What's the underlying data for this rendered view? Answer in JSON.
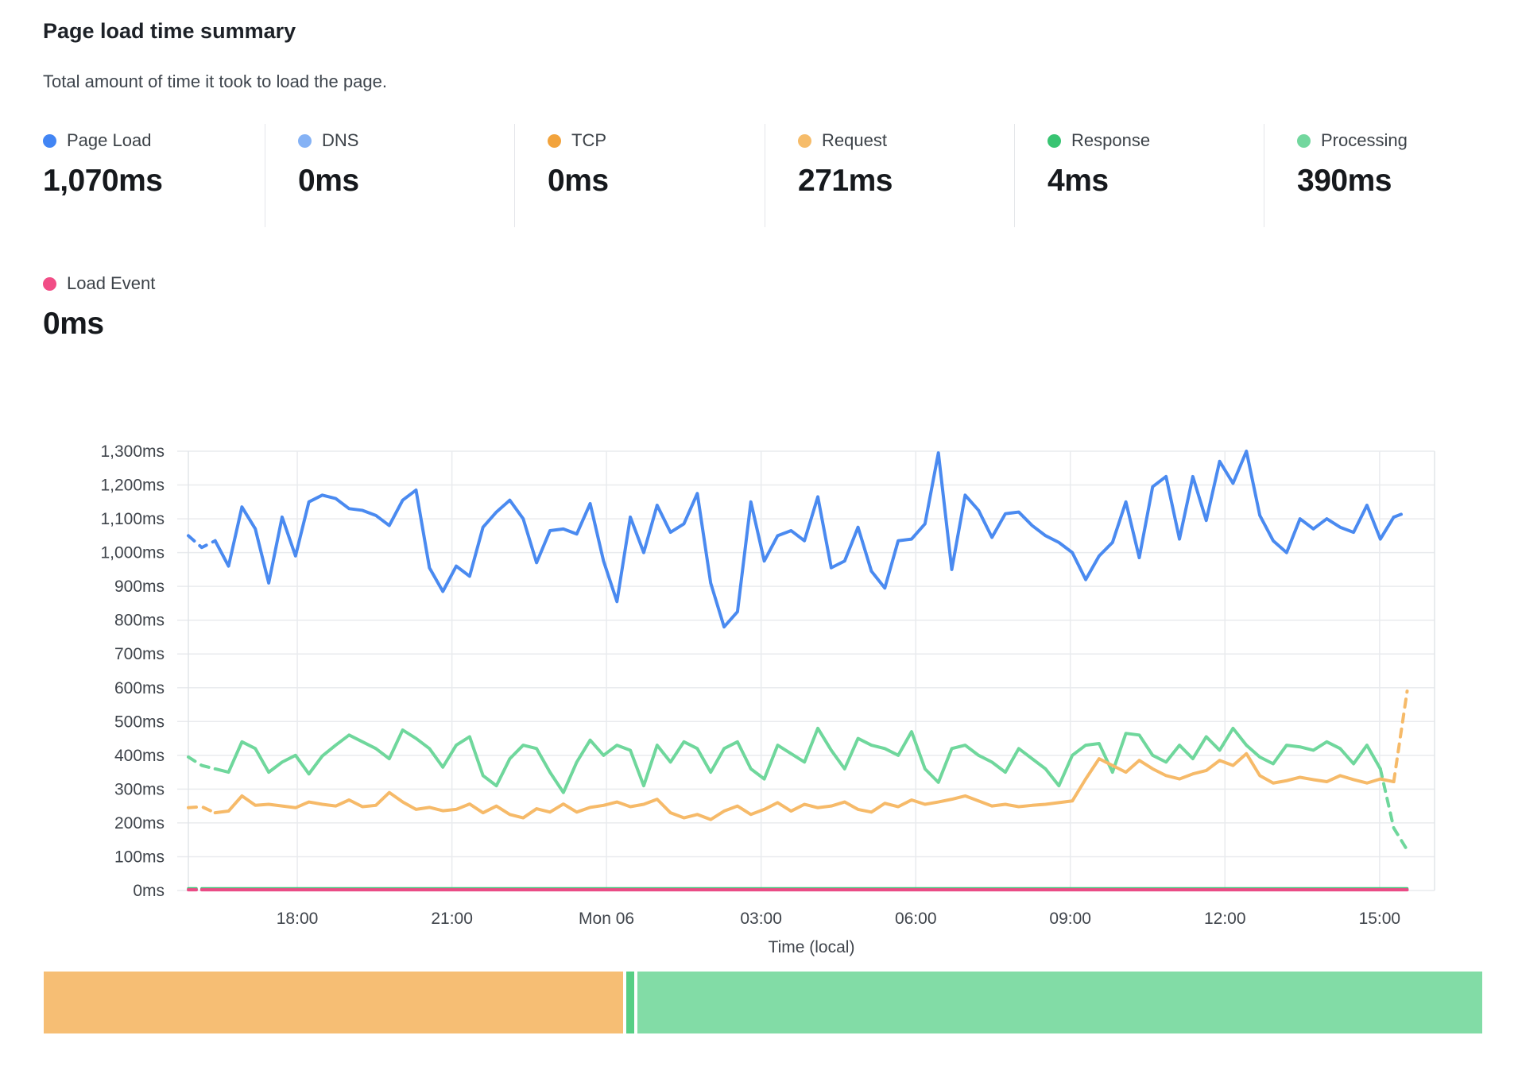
{
  "header": {
    "title": "Page load time summary",
    "subtitle": "Total amount of time it took to load the page."
  },
  "metrics": [
    {
      "label": "Page Load",
      "value": "1,070ms",
      "color": "#4285F4"
    },
    {
      "label": "DNS",
      "value": "0ms",
      "color": "#85B2F5"
    },
    {
      "label": "TCP",
      "value": "0ms",
      "color": "#F2A33C"
    },
    {
      "label": "Request",
      "value": "271ms",
      "color": "#F6BC6A"
    },
    {
      "label": "Response",
      "value": "4ms",
      "color": "#38C472"
    },
    {
      "label": "Processing",
      "value": "390ms",
      "color": "#72D79E"
    },
    {
      "label": "Load Event",
      "value": "0ms",
      "color": "#F14D86"
    }
  ],
  "chart_data": {
    "type": "line",
    "title": "Page load time summary",
    "xlabel": "Time (local)",
    "ylabel": "",
    "ylim": [
      0,
      1300
    ],
    "grid": true,
    "legend_position": "top",
    "y_ticks": [
      "0ms",
      "100ms",
      "200ms",
      "300ms",
      "400ms",
      "500ms",
      "600ms",
      "700ms",
      "800ms",
      "900ms",
      "1,000ms",
      "1,100ms",
      "1,200ms",
      "1,300ms"
    ],
    "x_ticks": [
      {
        "label": "18:00",
        "pos": 0.0874
      },
      {
        "label": "21:00",
        "pos": 0.2115
      },
      {
        "label": "Mon 06",
        "pos": 0.3355
      },
      {
        "label": "03:00",
        "pos": 0.4596
      },
      {
        "label": "06:00",
        "pos": 0.5837
      },
      {
        "label": "09:00",
        "pos": 0.7077
      },
      {
        "label": "12:00",
        "pos": 0.8318
      },
      {
        "label": "15:00",
        "pos": 0.9559
      }
    ],
    "series": [
      {
        "name": "Processing",
        "color": "#6FD79C",
        "width": 4,
        "dash_start": 2,
        "dash_end": 2,
        "values": [
          395,
          370,
          360,
          350,
          440,
          420,
          350,
          380,
          400,
          345,
          398,
          430,
          460,
          440,
          420,
          390,
          475,
          450,
          420,
          365,
          430,
          455,
          340,
          310,
          390,
          430,
          420,
          350,
          290,
          380,
          445,
          400,
          430,
          415,
          310,
          430,
          380,
          440,
          420,
          350,
          420,
          440,
          360,
          330,
          430,
          405,
          380,
          480,
          415,
          360,
          450,
          430,
          420,
          400,
          470,
          360,
          320,
          420,
          430,
          400,
          380,
          350,
          420,
          390,
          360,
          310,
          400,
          430,
          435,
          350,
          465,
          460,
          400,
          380,
          430,
          390,
          455,
          415,
          480,
          430,
          395,
          375,
          430,
          425,
          415,
          440,
          420,
          375,
          430,
          360,
          185,
          120
        ]
      },
      {
        "name": "Request",
        "color": "#F6BA69",
        "width": 4,
        "dash_start": 2,
        "dash_end": 1,
        "values": [
          245,
          248,
          230,
          235,
          280,
          252,
          255,
          250,
          245,
          262,
          255,
          250,
          268,
          248,
          252,
          290,
          262,
          240,
          246,
          236,
          240,
          256,
          230,
          250,
          225,
          215,
          242,
          232,
          256,
          232,
          246,
          252,
          262,
          248,
          255,
          270,
          230,
          215,
          225,
          210,
          235,
          250,
          225,
          240,
          260,
          235,
          255,
          245,
          250,
          262,
          240,
          232,
          258,
          248,
          268,
          255,
          262,
          270,
          280,
          265,
          250,
          255,
          248,
          252,
          255,
          260,
          265,
          330,
          390,
          370,
          350,
          385,
          360,
          340,
          330,
          345,
          355,
          385,
          370,
          405,
          340,
          318,
          325,
          335,
          328,
          322,
          340,
          328,
          318,
          330,
          322,
          590
        ]
      },
      {
        "name": "Response",
        "color": "#45C77C",
        "width": 3.5,
        "dash_start": 1,
        "dash_end": 0,
        "const": 6,
        "count": 92
      },
      {
        "name": "Load Event",
        "color": "#EA4C86",
        "width": 4,
        "dash_start": 1,
        "dash_end": 0,
        "const": 2,
        "count": 92
      },
      {
        "name": "Page Load",
        "color": "#4A8AF0",
        "width": 4,
        "dash_start": 2,
        "dash_end": 1,
        "values": [
          1050,
          1015,
          1035,
          960,
          1135,
          1070,
          910,
          1105,
          990,
          1150,
          1170,
          1160,
          1130,
          1125,
          1110,
          1080,
          1155,
          1185,
          955,
          885,
          960,
          930,
          1075,
          1120,
          1155,
          1100,
          970,
          1065,
          1070,
          1055,
          1145,
          975,
          855,
          1105,
          1000,
          1140,
          1060,
          1085,
          1175,
          910,
          780,
          825,
          1150,
          975,
          1050,
          1065,
          1035,
          1165,
          955,
          975,
          1075,
          945,
          895,
          1035,
          1040,
          1085,
          1295,
          950,
          1170,
          1125,
          1045,
          1115,
          1120,
          1080,
          1050,
          1030,
          1000,
          920,
          990,
          1030,
          1150,
          985,
          1195,
          1225,
          1040,
          1225,
          1095,
          1270,
          1205,
          1300,
          1110,
          1035,
          1000,
          1100,
          1070,
          1100,
          1075,
          1060,
          1140,
          1040,
          1105,
          1120
        ]
      }
    ]
  },
  "timeline_bar": {
    "segments": [
      {
        "name": "orange-segment",
        "color": "#F6BE74",
        "fraction": 0.4045
      },
      {
        "name": "green-sliver-segment",
        "color": "#57CF85",
        "fraction": 0.0055
      },
      {
        "name": "green-segment",
        "color": "#82DCA6",
        "fraction": 0.59
      }
    ]
  }
}
